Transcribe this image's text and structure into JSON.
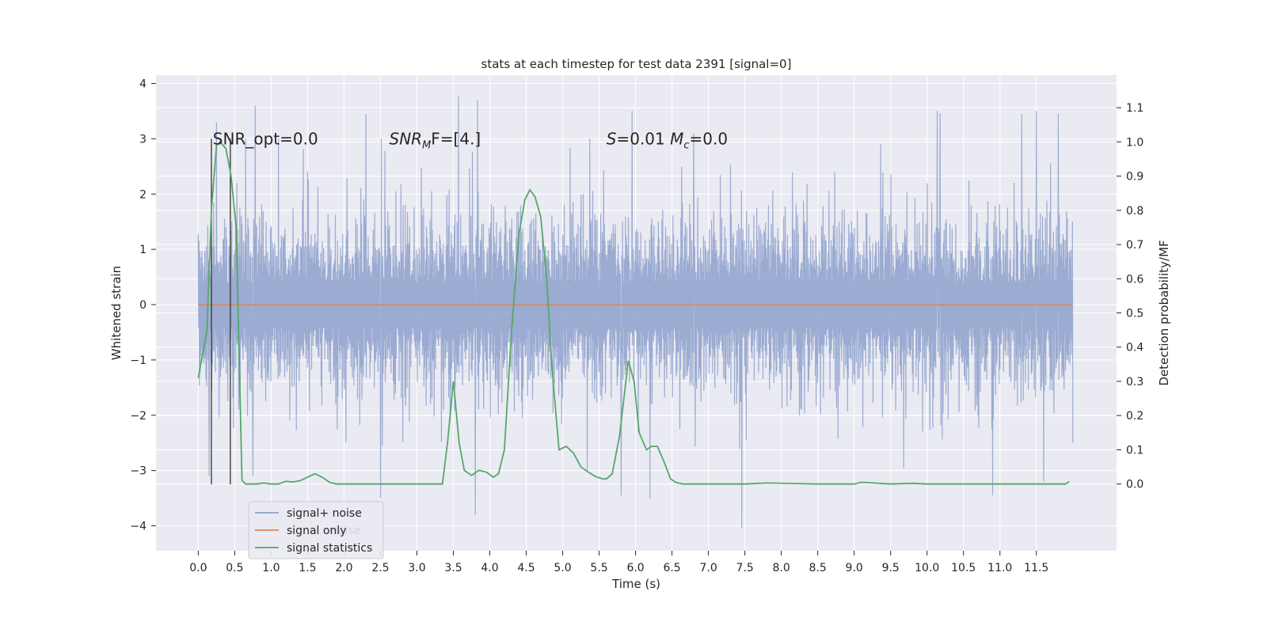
{
  "chart_data": {
    "type": "line",
    "title": "stats at each timestep for test data 2391 [signal=0]",
    "xlabel": "Time (s)",
    "ylabel_left": "Whitened strain",
    "ylabel_right": "Detection probability/MF",
    "xlim": [
      -0.58,
      12.6
    ],
    "ylim_left": [
      -4.45,
      4.15
    ],
    "ylim_right": [
      -0.195,
      1.195
    ],
    "x_ticks": [
      "0.0",
      "0.5",
      "1.0",
      "1.5",
      "2.0",
      "2.5",
      "3.0",
      "3.5",
      "4.0",
      "4.5",
      "5.0",
      "5.5",
      "6.0",
      "6.5",
      "7.0",
      "7.5",
      "8.0",
      "8.5",
      "9.0",
      "9.5",
      "10.0",
      "10.5",
      "11.0",
      "11.5"
    ],
    "y_ticks_left": [
      "−4",
      "−3",
      "−2",
      "−1",
      "0",
      "1",
      "2",
      "3",
      "4"
    ],
    "y_ticks_right": [
      "0.0",
      "0.1",
      "0.2",
      "0.3",
      "0.4",
      "0.5",
      "0.6",
      "0.7",
      "0.8",
      "0.9",
      "1.0",
      "1.1"
    ],
    "grid": true,
    "legend": "lower-left",
    "colors": {
      "noise": "#8da0cb",
      "signal_only": "#dd8452",
      "statistics": "#55a868",
      "background": "#eaeaf2",
      "vline": "#333333"
    },
    "series": [
      {
        "name": "signal+ noise",
        "axis": "left",
        "x_range": [
          0.0,
          12.0
        ],
        "band_typical": [
          -1.3,
          1.3
        ],
        "extreme_peaks": [
          {
            "x": 0.25,
            "y": 3.3
          },
          {
            "x": 0.78,
            "y": 3.6
          },
          {
            "x": 2.3,
            "y": 3.45
          },
          {
            "x": 3.57,
            "y": 3.78
          },
          {
            "x": 3.83,
            "y": 3.7
          },
          {
            "x": 5.95,
            "y": 3.5
          },
          {
            "x": 10.14,
            "y": 3.5
          },
          {
            "x": 10.18,
            "y": 3.46
          },
          {
            "x": 11.3,
            "y": 3.45
          },
          {
            "x": 11.5,
            "y": 3.5
          },
          {
            "x": 11.8,
            "y": 3.46
          },
          {
            "x": 6.8,
            "y": 3.1
          }
        ],
        "extreme_troughs": [
          {
            "x": 0.15,
            "y": -3.1
          },
          {
            "x": 2.5,
            "y": -3.5
          },
          {
            "x": 3.8,
            "y": -3.8
          },
          {
            "x": 6.2,
            "y": -3.5
          },
          {
            "x": 7.46,
            "y": -4.05
          },
          {
            "x": 10.9,
            "y": -3.45
          },
          {
            "x": 11.6,
            "y": -3.2
          },
          {
            "x": 0.75,
            "y": -3.1
          },
          {
            "x": 5.8,
            "y": -3.45
          }
        ]
      },
      {
        "name": "signal only",
        "axis": "left",
        "x": [
          0.0,
          12.0
        ],
        "y": [
          0.0,
          0.0
        ]
      },
      {
        "name": "signal statistics",
        "axis": "right",
        "x": [
          0.0,
          0.12,
          0.18,
          0.25,
          0.3,
          0.38,
          0.45,
          0.52,
          0.6,
          0.65,
          0.8,
          0.9,
          1.0,
          1.1,
          1.2,
          1.3,
          1.4,
          1.5,
          1.6,
          1.7,
          1.8,
          1.9,
          2.0,
          2.5,
          3.0,
          3.35,
          3.42,
          3.5,
          3.58,
          3.65,
          3.75,
          3.85,
          3.95,
          4.05,
          4.12,
          4.2,
          4.3,
          4.4,
          4.48,
          4.55,
          4.62,
          4.7,
          4.78,
          4.85,
          4.95,
          5.05,
          5.15,
          5.25,
          5.35,
          5.45,
          5.55,
          5.6,
          5.68,
          5.78,
          5.9,
          5.98,
          6.05,
          6.15,
          6.22,
          6.3,
          6.4,
          6.48,
          6.55,
          6.65,
          7.0,
          7.5,
          7.8,
          8.5,
          9.0,
          9.1,
          9.5,
          9.8,
          10.0,
          11.0,
          11.5,
          11.9,
          11.95
        ],
        "y": [
          0.31,
          0.45,
          0.8,
          0.99,
          1.0,
          0.98,
          0.9,
          0.75,
          0.01,
          0.0,
          0.0,
          0.003,
          0.0,
          0.0,
          0.008,
          0.006,
          0.01,
          0.02,
          0.03,
          0.02,
          0.005,
          0.0,
          0.0,
          0.0,
          0.0,
          0.0,
          0.12,
          0.3,
          0.12,
          0.04,
          0.025,
          0.04,
          0.035,
          0.02,
          0.03,
          0.1,
          0.45,
          0.73,
          0.83,
          0.86,
          0.84,
          0.78,
          0.6,
          0.35,
          0.1,
          0.11,
          0.09,
          0.05,
          0.035,
          0.022,
          0.015,
          0.015,
          0.03,
          0.14,
          0.36,
          0.3,
          0.15,
          0.1,
          0.11,
          0.11,
          0.06,
          0.015,
          0.005,
          0.0,
          0.0,
          0.0,
          0.003,
          0.0,
          0.0,
          0.005,
          0.0,
          0.002,
          0.0,
          0.0,
          0.0,
          0.0,
          0.007
        ]
      }
    ],
    "vlines_left": [
      {
        "x": 0.18,
        "y_min": -3.25,
        "y_max": 3.0
      },
      {
        "x": 0.44,
        "y_min": -3.25,
        "y_max": 3.0
      }
    ],
    "annotations": [
      {
        "id": "snr-opt",
        "text": "SNR_opt=0.0",
        "x": 0.2,
        "y": 3.0
      },
      {
        "id": "snr-mf-main",
        "text": "SNR",
        "sub": "M",
        "rest": "F=[4.]",
        "x": 2.62,
        "y": 3.0
      },
      {
        "id": "s-mc",
        "text": "S",
        "rest": "=0.01   ",
        "text2": "M",
        "sub2": "c",
        "rest2": "=0.0",
        "x": 5.6,
        "y": 3.0
      }
    ],
    "legend_entries": [
      "signal+ noise",
      "signal only",
      "signal statistics"
    ],
    "legend_ghost_text": "noise"
  }
}
